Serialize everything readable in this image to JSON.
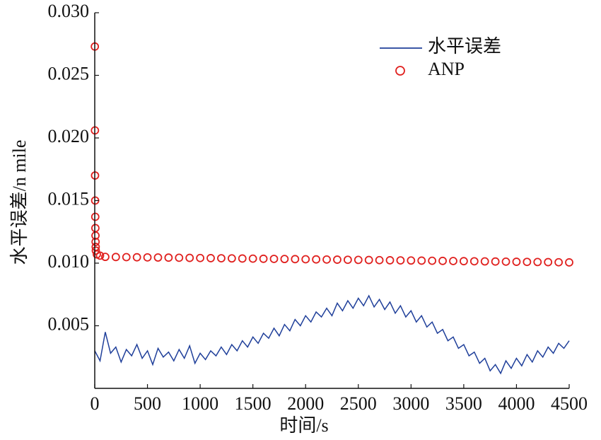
{
  "chart_data": {
    "type": "line",
    "xlabel": "时间/s",
    "ylabel": "水平误差/n mile",
    "xlim": [
      0,
      4500
    ],
    "ylim": [
      0,
      0.03
    ],
    "xticks": [
      0,
      500,
      1000,
      1500,
      2000,
      2500,
      3000,
      3500,
      4000,
      4500
    ],
    "yticks": [
      0.005,
      {
        "value": 0.01,
        "label": "0.010"
      },
      0.015,
      {
        "value": 0.02,
        "label": "0.020"
      },
      0.025,
      {
        "value": 0.03,
        "label": "0.030"
      }
    ],
    "series": [
      {
        "name": "水平误差",
        "color": "#1f3f9a",
        "kind": "line",
        "x": [
          0,
          50,
          100,
          150,
          200,
          250,
          300,
          350,
          400,
          450,
          500,
          550,
          600,
          650,
          700,
          750,
          800,
          850,
          900,
          950,
          1000,
          1050,
          1100,
          1150,
          1200,
          1250,
          1300,
          1350,
          1400,
          1450,
          1500,
          1550,
          1600,
          1650,
          1700,
          1750,
          1800,
          1850,
          1900,
          1950,
          2000,
          2050,
          2100,
          2150,
          2200,
          2250,
          2300,
          2350,
          2400,
          2450,
          2500,
          2550,
          2600,
          2650,
          2700,
          2750,
          2800,
          2850,
          2900,
          2950,
          3000,
          3050,
          3100,
          3150,
          3200,
          3250,
          3300,
          3350,
          3400,
          3450,
          3500,
          3550,
          3600,
          3650,
          3700,
          3750,
          3800,
          3850,
          3900,
          3950,
          4000,
          4050,
          4100,
          4150,
          4200,
          4250,
          4300,
          4350,
          4400,
          4450,
          4500
        ],
        "values": [
          0.003,
          0.0022,
          0.0045,
          0.0028,
          0.0033,
          0.0021,
          0.0031,
          0.0026,
          0.0035,
          0.0024,
          0.003,
          0.0019,
          0.0032,
          0.0025,
          0.0029,
          0.0022,
          0.0031,
          0.0024,
          0.0034,
          0.002,
          0.0028,
          0.0023,
          0.003,
          0.0026,
          0.0033,
          0.0027,
          0.0035,
          0.003,
          0.0038,
          0.0033,
          0.0041,
          0.0036,
          0.0044,
          0.004,
          0.0048,
          0.0042,
          0.0051,
          0.0046,
          0.0055,
          0.005,
          0.0058,
          0.0053,
          0.0061,
          0.0057,
          0.0064,
          0.0058,
          0.0068,
          0.0062,
          0.007,
          0.0064,
          0.0072,
          0.0066,
          0.0074,
          0.0065,
          0.0071,
          0.0063,
          0.0069,
          0.006,
          0.0066,
          0.0057,
          0.0062,
          0.0053,
          0.0058,
          0.0049,
          0.0053,
          0.0044,
          0.0047,
          0.0038,
          0.0041,
          0.0032,
          0.0035,
          0.0026,
          0.0029,
          0.002,
          0.0024,
          0.0014,
          0.0019,
          0.0012,
          0.0022,
          0.0016,
          0.0024,
          0.0018,
          0.0027,
          0.0021,
          0.003,
          0.0025,
          0.0033,
          0.0028,
          0.0036,
          0.0032,
          0.0038
        ]
      },
      {
        "name": "ANP",
        "color": "#e0201e",
        "kind": "marker",
        "x": [
          1,
          2,
          3,
          4,
          5,
          6,
          7,
          8,
          9,
          10,
          20,
          50,
          100,
          200,
          300,
          400,
          500,
          600,
          700,
          800,
          900,
          1000,
          1100,
          1200,
          1300,
          1400,
          1500,
          1600,
          1700,
          1800,
          1900,
          2000,
          2100,
          2200,
          2300,
          2400,
          2500,
          2600,
          2700,
          2800,
          2900,
          3000,
          3100,
          3200,
          3300,
          3400,
          3500,
          3600,
          3700,
          3800,
          3900,
          4000,
          4100,
          4200,
          4300,
          4400,
          4500
        ],
        "values": [
          0.0273,
          0.0206,
          0.017,
          0.015,
          0.0137,
          0.0128,
          0.0122,
          0.0117,
          0.0113,
          0.011,
          0.0107,
          0.0106,
          0.0105,
          0.01049,
          0.01048,
          0.01047,
          0.01046,
          0.01045,
          0.01044,
          0.01043,
          0.01042,
          0.01041,
          0.0104,
          0.01039,
          0.01038,
          0.01037,
          0.01036,
          0.01035,
          0.01034,
          0.01033,
          0.01032,
          0.01031,
          0.0103,
          0.01029,
          0.01028,
          0.01027,
          0.01026,
          0.01025,
          0.01024,
          0.01023,
          0.01022,
          0.01021,
          0.0102,
          0.01019,
          0.01018,
          0.01017,
          0.01016,
          0.01015,
          0.01014,
          0.01013,
          0.01012,
          0.01011,
          0.0101,
          0.01009,
          0.01008,
          0.01007,
          0.01006
        ]
      }
    ]
  }
}
